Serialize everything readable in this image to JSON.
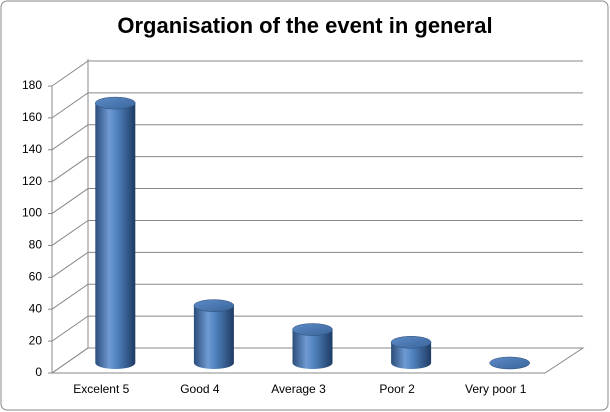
{
  "chart_data": {
    "type": "bar3d",
    "title": "Organisation of the event in general",
    "categories": [
      "Excelent 5",
      "Good 4",
      "Average 3",
      "Poor 2",
      "Very poor 1"
    ],
    "values": [
      163,
      36,
      21,
      13,
      0
    ],
    "color": "#4f81bd",
    "ylim": [
      0,
      180
    ],
    "yticks": [
      0,
      20,
      40,
      60,
      80,
      100,
      120,
      140,
      160,
      180
    ],
    "grid": true
  }
}
